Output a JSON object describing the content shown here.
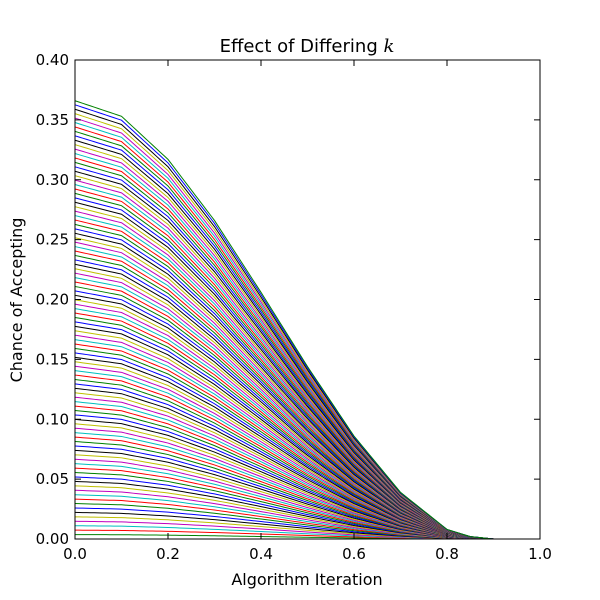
{
  "chart_data": {
    "type": "line",
    "title": "Effect of Differing",
    "title_symbol": "k",
    "xlabel": "Algorithm Iteration",
    "ylabel": "Chance of Accepting",
    "xlim": [
      0.0,
      1.0
    ],
    "ylim": [
      0.0,
      0.4
    ],
    "x_ticks": [
      "0.0",
      "0.2",
      "0.4",
      "0.6",
      "0.8",
      "1.0"
    ],
    "y_ticks": [
      "0.00",
      "0.05",
      "0.10",
      "0.15",
      "0.20",
      "0.25",
      "0.30",
      "0.35",
      "0.40"
    ],
    "grid": false,
    "legend": "none",
    "series_colors": [
      "#0000ff",
      "#008000",
      "#ff0000",
      "#00bfbf",
      "#bf00bf",
      "#bfbf00",
      "#000000"
    ],
    "curve_count": 100,
    "series_start_values": [
      0.0,
      0.0037,
      0.0074,
      0.0111,
      0.0148,
      0.0185,
      0.0222,
      0.0259,
      0.0296,
      0.0333,
      0.037,
      0.0407,
      0.0444,
      0.0481,
      0.0518,
      0.0555,
      0.0592,
      0.0629,
      0.0666,
      0.0703,
      0.074,
      0.0777,
      0.0814,
      0.0851,
      0.0888,
      0.0925,
      0.0962,
      0.0999,
      0.1036,
      0.1073,
      0.111,
      0.1147,
      0.1184,
      0.1221,
      0.1258,
      0.1295,
      0.1332,
      0.1369,
      0.1406,
      0.1443,
      0.148,
      0.1517,
      0.1554,
      0.1591,
      0.1628,
      0.1665,
      0.1702,
      0.1739,
      0.1776,
      0.1813,
      0.185,
      0.1887,
      0.1924,
      0.1961,
      0.1998,
      0.2035,
      0.2072,
      0.2109,
      0.2146,
      0.2183,
      0.222,
      0.2257,
      0.2294,
      0.2331,
      0.2368,
      0.2405,
      0.2442,
      0.2479,
      0.2516,
      0.2553,
      0.259,
      0.2627,
      0.2664,
      0.2701,
      0.2738,
      0.2775,
      0.2812,
      0.2849,
      0.2886,
      0.2923,
      0.296,
      0.2997,
      0.3034,
      0.3071,
      0.3108,
      0.3145,
      0.3182,
      0.3219,
      0.3256,
      0.3293,
      0.333,
      0.3367,
      0.3404,
      0.3441,
      0.3478,
      0.3515,
      0.3552,
      0.3589,
      0.3626,
      0.366
    ],
    "envelope": {
      "x": [
        0.0,
        0.1,
        0.2,
        0.3,
        0.4,
        0.5,
        0.6,
        0.7,
        0.8,
        0.85,
        0.9,
        1.0
      ],
      "y": [
        0.366,
        0.353,
        0.317,
        0.266,
        0.206,
        0.144,
        0.086,
        0.039,
        0.008,
        0.002,
        0.0,
        0.0
      ]
    }
  }
}
